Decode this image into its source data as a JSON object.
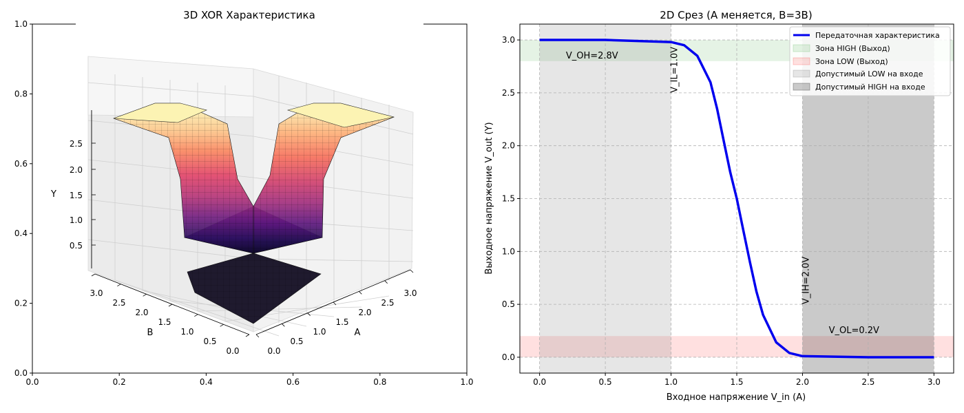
{
  "chart_data": [
    {
      "type": "surface3d",
      "title": "3D XOR Характеристика",
      "xlabel": "A",
      "ylabel": "B",
      "zlabel": "Y",
      "x_ticks": [
        "0.0",
        "0.5",
        "1.0",
        "1.5",
        "2.0",
        "2.5",
        "3.0"
      ],
      "y_ticks": [
        "0.0",
        "0.5",
        "1.0",
        "1.5",
        "2.0",
        "2.5",
        "3.0"
      ],
      "z_ticks": [
        "0.5",
        "1.0",
        "1.5",
        "2.0",
        "2.5"
      ],
      "frame_x_ticks": [
        "0.0",
        "0.2",
        "0.4",
        "0.6",
        "0.8",
        "1.0"
      ],
      "frame_y_ticks": [
        "0.0",
        "0.2",
        "0.4",
        "0.6",
        "0.8",
        "1.0"
      ],
      "xlim": [
        0,
        3
      ],
      "ylim": [
        0,
        3
      ],
      "zlim": [
        0,
        3
      ],
      "surface": "XOR transfer surface: high (~3.0) where exactly one of A, B is high, low (~0.0) at both-low and both-high, colormap magma",
      "colormap": "magma"
    },
    {
      "type": "line",
      "title": "2D Срез (A меняется, B=3В)",
      "xlabel": "Входное напряжение V_in (A)",
      "ylabel": "Выходное напряжение V_out (Y)",
      "xlim": [
        -0.15,
        3.15
      ],
      "ylim": [
        -0.15,
        3.15
      ],
      "x_ticks": [
        "0.0",
        "0.5",
        "1.0",
        "1.5",
        "2.0",
        "2.5",
        "3.0"
      ],
      "y_ticks": [
        "0.0",
        "0.5",
        "1.0",
        "1.5",
        "2.0",
        "2.5",
        "3.0"
      ],
      "grid": true,
      "legend_position": "top-right",
      "series": [
        {
          "name": "Передаточная характеристика",
          "color": "#0000ee",
          "x": [
            0.0,
            0.5,
            1.0,
            1.1,
            1.2,
            1.3,
            1.35,
            1.4,
            1.45,
            1.5,
            1.55,
            1.6,
            1.65,
            1.7,
            1.8,
            1.9,
            2.0,
            2.5,
            3.0
          ],
          "y": [
            3.0,
            3.0,
            2.98,
            2.95,
            2.85,
            2.6,
            2.35,
            2.05,
            1.75,
            1.5,
            1.2,
            0.9,
            0.62,
            0.4,
            0.14,
            0.04,
            0.01,
            0.0,
            0.0
          ]
        }
      ],
      "bands": [
        {
          "name": "Зона HIGH (Выход)",
          "orientation": "horizontal",
          "from": 2.8,
          "to": 3.0,
          "color": "#2ca02c",
          "opacity": 0.12
        },
        {
          "name": "Зона LOW (Выход)",
          "orientation": "horizontal",
          "from": 0.0,
          "to": 0.2,
          "color": "#ff0000",
          "opacity": 0.12
        },
        {
          "name": "Допустимый LOW на входе",
          "orientation": "vertical",
          "from": 0.0,
          "to": 1.0,
          "color": "#808080",
          "opacity": 0.2
        },
        {
          "name": "Допустимый HIGH на входе",
          "orientation": "vertical",
          "from": 2.0,
          "to": 3.0,
          "color": "#404040",
          "opacity": 0.28
        }
      ],
      "annotations": [
        {
          "text": "V_OH=2.8V",
          "x": 0.2,
          "y": 2.8,
          "rotation": 0
        },
        {
          "text": "V_IL=1.0V",
          "x": 1.0,
          "y": 2.5,
          "rotation": 90
        },
        {
          "text": "V_IH=2.0V",
          "x": 2.0,
          "y": 0.5,
          "rotation": 90
        },
        {
          "text": "V_OL=0.2V",
          "x": 2.2,
          "y": 0.2,
          "rotation": 0
        }
      ]
    }
  ]
}
